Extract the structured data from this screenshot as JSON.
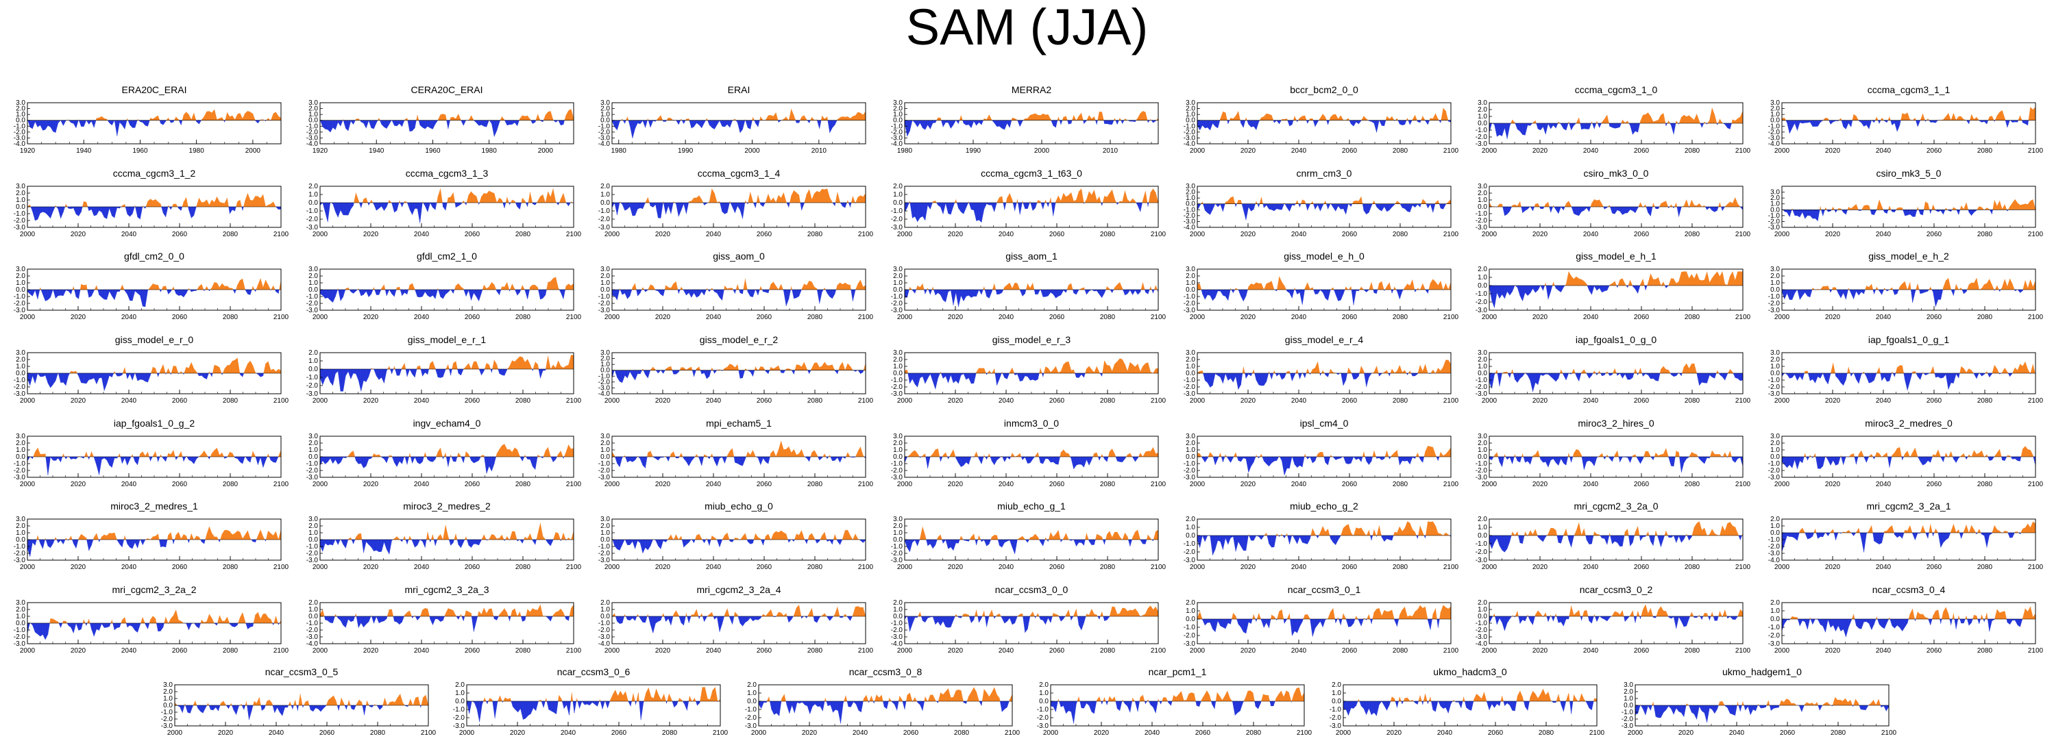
{
  "title": "SAM (JJA)",
  "chart_data": {
    "type": "area",
    "title": "SAM (JJA)",
    "description_of_values": "Each panel is a SAM index time series; positive anomalies filled orange, negative filled blue. Series values are approximated.",
    "colors": {
      "positive": "#f58220",
      "negative": "#2335d8",
      "axis": "#000000"
    },
    "yticks": [
      "3.0",
      "2.0",
      "1.0",
      "0.0",
      "-1.0",
      "-2.0",
      "-3.0"
    ],
    "panels": [
      {
        "name": "ERA20C_ERAI",
        "xrange": [
          1920,
          2010
        ],
        "xticks": [
          "1920",
          "1940",
          "1960",
          "1980",
          "2000"
        ],
        "ylim": [
          -4,
          3
        ],
        "seed": 11,
        "trend": 1.4
      },
      {
        "name": "CERA20C_ERAI",
        "xrange": [
          1920,
          2010
        ],
        "xticks": [
          "1920",
          "1940",
          "1960",
          "1980",
          "2000"
        ],
        "ylim": [
          -4,
          3
        ],
        "seed": 12,
        "trend": 0.8
      },
      {
        "name": "ERAI",
        "xrange": [
          1979,
          2017
        ],
        "xticks": [
          "1980",
          "1990",
          "2000",
          "2010"
        ],
        "ylim": [
          -4,
          3
        ],
        "seed": 13,
        "trend": 0.4
      },
      {
        "name": "MERRA2",
        "xrange": [
          1980,
          2017
        ],
        "xticks": [
          "1980",
          "1990",
          "2000",
          "2010"
        ],
        "ylim": [
          -4,
          3
        ],
        "seed": 14,
        "trend": 0.3
      },
      {
        "name": "bccr_bcm2_0_0",
        "xrange": [
          2000,
          2100
        ],
        "xticks": [
          "2000",
          "2020",
          "2040",
          "2060",
          "2080",
          "2100"
        ],
        "ylim": [
          -4,
          3
        ],
        "seed": 15,
        "trend": 0.5
      },
      {
        "name": "cccma_cgcm3_1_0",
        "xrange": [
          2000,
          2100
        ],
        "xticks": [
          "2000",
          "2020",
          "2040",
          "2060",
          "2080",
          "2100"
        ],
        "ylim": [
          -3,
          3
        ],
        "seed": 16,
        "trend": 1.0
      },
      {
        "name": "cccma_cgcm3_1_1",
        "xrange": [
          2000,
          2100
        ],
        "xticks": [
          "2000",
          "2020",
          "2040",
          "2060",
          "2080",
          "2100"
        ],
        "ylim": [
          -4,
          3
        ],
        "seed": 17,
        "trend": 1.2
      },
      {
        "name": "cccma_cgcm3_1_2",
        "xrange": [
          2000,
          2100
        ],
        "xticks": [
          "2000",
          "2020",
          "2040",
          "2060",
          "2080",
          "2100"
        ],
        "ylim": [
          -3,
          3
        ],
        "seed": 18,
        "trend": 1.0
      },
      {
        "name": "cccma_cgcm3_1_3",
        "xrange": [
          2000,
          2100
        ],
        "xticks": [
          "2000",
          "2020",
          "2040",
          "2060",
          "2080",
          "2100"
        ],
        "ylim": [
          -3,
          2
        ],
        "seed": 19,
        "trend": 1.1
      },
      {
        "name": "cccma_cgcm3_1_4",
        "xrange": [
          2000,
          2100
        ],
        "xticks": [
          "2000",
          "2020",
          "2040",
          "2060",
          "2080",
          "2100"
        ],
        "ylim": [
          -3,
          2
        ],
        "seed": 20,
        "trend": 0.9
      },
      {
        "name": "cccma_cgcm3_1_t63_0",
        "xrange": [
          2000,
          2100
        ],
        "xticks": [
          "2000",
          "2020",
          "2040",
          "2060",
          "2080",
          "2100"
        ],
        "ylim": [
          -3,
          2
        ],
        "seed": 21,
        "trend": 1.3
      },
      {
        "name": "cnrm_cm3_0",
        "xrange": [
          2000,
          2100
        ],
        "xticks": [
          "2000",
          "2020",
          "2040",
          "2060",
          "2080",
          "2100"
        ],
        "ylim": [
          -4,
          3
        ],
        "seed": 22,
        "trend": 0.3
      },
      {
        "name": "csiro_mk3_0_0",
        "xrange": [
          2000,
          2100
        ],
        "xticks": [
          "2000",
          "2020",
          "2040",
          "2060",
          "2080",
          "2100"
        ],
        "ylim": [
          -3,
          3
        ],
        "seed": 23,
        "trend": 0.6
      },
      {
        "name": "csiro_mk3_5_0",
        "xrange": [
          2000,
          2100
        ],
        "xticks": [
          "2000",
          "2020",
          "2040",
          "2060",
          "2080",
          "2100"
        ],
        "ylim": [
          -3,
          4
        ],
        "seed": 24,
        "trend": 0.8
      },
      {
        "name": "gfdl_cm2_0_0",
        "xrange": [
          2000,
          2100
        ],
        "xticks": [
          "2000",
          "2020",
          "2040",
          "2060",
          "2080",
          "2100"
        ],
        "ylim": [
          -3,
          3
        ],
        "seed": 25,
        "trend": 1.0
      },
      {
        "name": "gfdl_cm2_1_0",
        "xrange": [
          2000,
          2100
        ],
        "xticks": [
          "2000",
          "2020",
          "2040",
          "2060",
          "2080",
          "2100"
        ],
        "ylim": [
          -3,
          3
        ],
        "seed": 26,
        "trend": 0.9
      },
      {
        "name": "giss_aom_0",
        "xrange": [
          2000,
          2100
        ],
        "xticks": [
          "2000",
          "2020",
          "2040",
          "2060",
          "2080",
          "2100"
        ],
        "ylim": [
          -3,
          3
        ],
        "seed": 27,
        "trend": 0.6
      },
      {
        "name": "giss_aom_1",
        "xrange": [
          2000,
          2100
        ],
        "xticks": [
          "2000",
          "2020",
          "2040",
          "2060",
          "2080",
          "2100"
        ],
        "ylim": [
          -3,
          3
        ],
        "seed": 28,
        "trend": 0.5
      },
      {
        "name": "giss_model_e_h_0",
        "xrange": [
          2000,
          2100
        ],
        "xticks": [
          "2000",
          "2020",
          "2040",
          "2060",
          "2080",
          "2100"
        ],
        "ylim": [
          -3,
          3
        ],
        "seed": 29,
        "trend": 0.7
      },
      {
        "name": "giss_model_e_h_1",
        "xrange": [
          2000,
          2100
        ],
        "xticks": [
          "2000",
          "2020",
          "2040",
          "2060",
          "2080",
          "2100"
        ],
        "ylim": [
          -3,
          2
        ],
        "seed": 30,
        "trend": 1.6
      },
      {
        "name": "giss_model_e_h_2",
        "xrange": [
          2000,
          2100
        ],
        "xticks": [
          "2000",
          "2020",
          "2040",
          "2060",
          "2080",
          "2100"
        ],
        "ylim": [
          -3,
          3
        ],
        "seed": 31,
        "trend": 1.1
      },
      {
        "name": "giss_model_e_r_0",
        "xrange": [
          2000,
          2100
        ],
        "xticks": [
          "2000",
          "2020",
          "2040",
          "2060",
          "2080",
          "2100"
        ],
        "ylim": [
          -3,
          3
        ],
        "seed": 32,
        "trend": 1.4
      },
      {
        "name": "giss_model_e_r_1",
        "xrange": [
          2000,
          2100
        ],
        "xticks": [
          "2000",
          "2020",
          "2040",
          "2060",
          "2080",
          "2100"
        ],
        "ylim": [
          -3,
          2
        ],
        "seed": 33,
        "trend": 1.2
      },
      {
        "name": "giss_model_e_r_2",
        "xrange": [
          2000,
          2100
        ],
        "xticks": [
          "2000",
          "2020",
          "2040",
          "2060",
          "2080",
          "2100"
        ],
        "ylim": [
          -4,
          3
        ],
        "seed": 34,
        "trend": 1.0
      },
      {
        "name": "giss_model_e_r_3",
        "xrange": [
          2000,
          2100
        ],
        "xticks": [
          "2000",
          "2020",
          "2040",
          "2060",
          "2080",
          "2100"
        ],
        "ylim": [
          -3,
          3
        ],
        "seed": 35,
        "trend": 1.3
      },
      {
        "name": "giss_model_e_r_4",
        "xrange": [
          2000,
          2100
        ],
        "xticks": [
          "2000",
          "2020",
          "2040",
          "2060",
          "2080",
          "2100"
        ],
        "ylim": [
          -3,
          3
        ],
        "seed": 36,
        "trend": 1.2
      },
      {
        "name": "iap_fgoals1_0_g_0",
        "xrange": [
          2000,
          2100
        ],
        "xticks": [
          "2000",
          "2020",
          "2040",
          "2060",
          "2080",
          "2100"
        ],
        "ylim": [
          -3,
          3
        ],
        "seed": 37,
        "trend": 0.4
      },
      {
        "name": "iap_fgoals1_0_g_1",
        "xrange": [
          2000,
          2100
        ],
        "xticks": [
          "2000",
          "2020",
          "2040",
          "2060",
          "2080",
          "2100"
        ],
        "ylim": [
          -3,
          3
        ],
        "seed": 38,
        "trend": 0.8
      },
      {
        "name": "iap_fgoals1_0_g_2",
        "xrange": [
          2000,
          2100
        ],
        "xticks": [
          "2000",
          "2020",
          "2040",
          "2060",
          "2080",
          "2100"
        ],
        "ylim": [
          -3,
          3
        ],
        "seed": 39,
        "trend": 0.3
      },
      {
        "name": "ingv_echam4_0",
        "xrange": [
          2000,
          2100
        ],
        "xticks": [
          "2000",
          "2020",
          "2040",
          "2060",
          "2080",
          "2100"
        ],
        "ylim": [
          -3,
          3
        ],
        "seed": 40,
        "trend": 1.0
      },
      {
        "name": "mpi_echam5_1",
        "xrange": [
          2000,
          2100
        ],
        "xticks": [
          "2000",
          "2020",
          "2040",
          "2060",
          "2080",
          "2100"
        ],
        "ylim": [
          -3,
          3
        ],
        "seed": 41,
        "trend": 0.6
      },
      {
        "name": "inmcm3_0_0",
        "xrange": [
          2000,
          2100
        ],
        "xticks": [
          "2000",
          "2020",
          "2040",
          "2060",
          "2080",
          "2100"
        ],
        "ylim": [
          -3,
          3
        ],
        "seed": 42,
        "trend": 0.2
      },
      {
        "name": "ipsl_cm4_0",
        "xrange": [
          2000,
          2100
        ],
        "xticks": [
          "2000",
          "2020",
          "2040",
          "2060",
          "2080",
          "2100"
        ],
        "ylim": [
          -3,
          3
        ],
        "seed": 43,
        "trend": 0.7
      },
      {
        "name": "miroc3_2_hires_0",
        "xrange": [
          2000,
          2100
        ],
        "xticks": [
          "2000",
          "2020",
          "2040",
          "2060",
          "2080",
          "2100"
        ],
        "ylim": [
          -3,
          3
        ],
        "seed": 44,
        "trend": 0.4
      },
      {
        "name": "miroc3_2_medres_0",
        "xrange": [
          2000,
          2100
        ],
        "xticks": [
          "2000",
          "2020",
          "2040",
          "2060",
          "2080",
          "2100"
        ],
        "ylim": [
          -3,
          3
        ],
        "seed": 45,
        "trend": 0.6
      },
      {
        "name": "miroc3_2_medres_1",
        "xrange": [
          2000,
          2100
        ],
        "xticks": [
          "2000",
          "2020",
          "2040",
          "2060",
          "2080",
          "2100"
        ],
        "ylim": [
          -3,
          3
        ],
        "seed": 46,
        "trend": 0.9
      },
      {
        "name": "miroc3_2_medres_2",
        "xrange": [
          2000,
          2100
        ],
        "xticks": [
          "2000",
          "2020",
          "2040",
          "2060",
          "2080",
          "2100"
        ],
        "ylim": [
          -3,
          3
        ],
        "seed": 47,
        "trend": 0.8
      },
      {
        "name": "miub_echo_g_0",
        "xrange": [
          2000,
          2100
        ],
        "xticks": [
          "2000",
          "2020",
          "2040",
          "2060",
          "2080",
          "2100"
        ],
        "ylim": [
          -3,
          3
        ],
        "seed": 48,
        "trend": 0.9
      },
      {
        "name": "miub_echo_g_1",
        "xrange": [
          2000,
          2100
        ],
        "xticks": [
          "2000",
          "2020",
          "2040",
          "2060",
          "2080",
          "2100"
        ],
        "ylim": [
          -3,
          3
        ],
        "seed": 49,
        "trend": 0.9
      },
      {
        "name": "miub_echo_g_2",
        "xrange": [
          2000,
          2100
        ],
        "xticks": [
          "2000",
          "2020",
          "2040",
          "2060",
          "2080",
          "2100"
        ],
        "ylim": [
          -3,
          2
        ],
        "seed": 50,
        "trend": 1.0
      },
      {
        "name": "mri_cgcm2_3_2a_0",
        "xrange": [
          2000,
          2100
        ],
        "xticks": [
          "2000",
          "2020",
          "2040",
          "2060",
          "2080",
          "2100"
        ],
        "ylim": [
          -3,
          2
        ],
        "seed": 51,
        "trend": 0.8
      },
      {
        "name": "mri_cgcm2_3_2a_1",
        "xrange": [
          2000,
          2100
        ],
        "xticks": [
          "2000",
          "2020",
          "2040",
          "2060",
          "2080",
          "2100"
        ],
        "ylim": [
          -4,
          2
        ],
        "seed": 52,
        "trend": 0.7
      },
      {
        "name": "mri_cgcm2_3_2a_2",
        "xrange": [
          2000,
          2100
        ],
        "xticks": [
          "2000",
          "2020",
          "2040",
          "2060",
          "2080",
          "2100"
        ],
        "ylim": [
          -3,
          3
        ],
        "seed": 53,
        "trend": 0.8
      },
      {
        "name": "mri_cgcm2_3_2a_3",
        "xrange": [
          2000,
          2100
        ],
        "xticks": [
          "2000",
          "2020",
          "2040",
          "2060",
          "2080",
          "2100"
        ],
        "ylim": [
          -4,
          2
        ],
        "seed": 54,
        "trend": 1.0
      },
      {
        "name": "mri_cgcm2_3_2a_4",
        "xrange": [
          2000,
          2100
        ],
        "xticks": [
          "2000",
          "2020",
          "2040",
          "2060",
          "2080",
          "2100"
        ],
        "ylim": [
          -4,
          2
        ],
        "seed": 55,
        "trend": 0.7
      },
      {
        "name": "ncar_ccsm3_0_0",
        "xrange": [
          2000,
          2100
        ],
        "xticks": [
          "2000",
          "2020",
          "2040",
          "2060",
          "2080",
          "2100"
        ],
        "ylim": [
          -4,
          2
        ],
        "seed": 56,
        "trend": 0.9
      },
      {
        "name": "ncar_ccsm3_0_1",
        "xrange": [
          2000,
          2100
        ],
        "xticks": [
          "2000",
          "2020",
          "2040",
          "2060",
          "2080",
          "2100"
        ],
        "ylim": [
          -3,
          2
        ],
        "seed": 57,
        "trend": 0.8
      },
      {
        "name": "ncar_ccsm3_0_2",
        "xrange": [
          2000,
          2100
        ],
        "xticks": [
          "2000",
          "2020",
          "2040",
          "2060",
          "2080",
          "2100"
        ],
        "ylim": [
          -4,
          2
        ],
        "seed": 58,
        "trend": 0.6
      },
      {
        "name": "ncar_ccsm3_0_4",
        "xrange": [
          2000,
          2100
        ],
        "xticks": [
          "2000",
          "2020",
          "2040",
          "2060",
          "2080",
          "2100"
        ],
        "ylim": [
          -3,
          2
        ],
        "seed": 59,
        "trend": 0.7
      },
      {
        "name": "ncar_ccsm3_0_5",
        "xrange": [
          2000,
          2100
        ],
        "xticks": [
          "2000",
          "2020",
          "2040",
          "2060",
          "2080",
          "2100"
        ],
        "ylim": [
          -3,
          3
        ],
        "seed": 60,
        "trend": 0.7
      },
      {
        "name": "ncar_ccsm3_0_6",
        "xrange": [
          2000,
          2100
        ],
        "xticks": [
          "2000",
          "2020",
          "2040",
          "2060",
          "2080",
          "2100"
        ],
        "ylim": [
          -3,
          2
        ],
        "seed": 61,
        "trend": 0.9
      },
      {
        "name": "ncar_ccsm3_0_8",
        "xrange": [
          2000,
          2100
        ],
        "xticks": [
          "2000",
          "2020",
          "2040",
          "2060",
          "2080",
          "2100"
        ],
        "ylim": [
          -3,
          2
        ],
        "seed": 62,
        "trend": 0.8
      },
      {
        "name": "ncar_pcm1_1",
        "xrange": [
          2000,
          2100
        ],
        "xticks": [
          "2000",
          "2020",
          "2040",
          "2060",
          "2080",
          "2100"
        ],
        "ylim": [
          -3,
          2
        ],
        "seed": 63,
        "trend": 0.5
      },
      {
        "name": "ukmo_hadcm3_0",
        "xrange": [
          2000,
          2100
        ],
        "xticks": [
          "2000",
          "2020",
          "2040",
          "2060",
          "2080",
          "2100"
        ],
        "ylim": [
          -3,
          2
        ],
        "seed": 64,
        "trend": 0.6
      },
      {
        "name": "ukmo_hadgem1_0",
        "xrange": [
          2000,
          2100
        ],
        "xticks": [
          "2000",
          "2020",
          "2040",
          "2060",
          "2080",
          "2100"
        ],
        "ylim": [
          -3,
          3
        ],
        "seed": 65,
        "trend": 0.6
      }
    ]
  }
}
